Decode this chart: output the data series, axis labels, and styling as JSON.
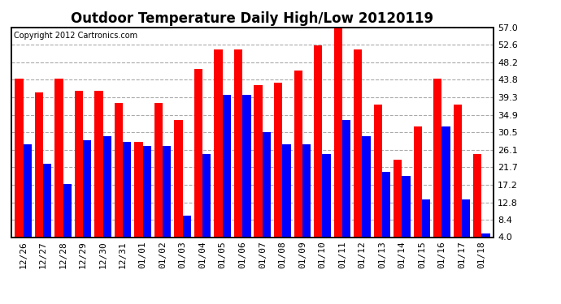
{
  "title": "Outdoor Temperature Daily High/Low 20120119",
  "copyright": "Copyright 2012 Cartronics.com",
  "categories": [
    "12/26",
    "12/27",
    "12/28",
    "12/29",
    "12/30",
    "12/31",
    "01/01",
    "01/02",
    "01/03",
    "01/04",
    "01/05",
    "01/06",
    "01/07",
    "01/08",
    "01/09",
    "01/10",
    "01/11",
    "01/12",
    "01/13",
    "01/14",
    "01/15",
    "01/16",
    "01/17",
    "01/18"
  ],
  "highs": [
    44.0,
    40.5,
    44.0,
    41.0,
    41.0,
    38.0,
    28.0,
    38.0,
    33.5,
    46.5,
    51.5,
    51.5,
    42.5,
    43.0,
    46.0,
    52.5,
    57.0,
    51.5,
    37.5,
    23.5,
    32.0,
    44.0,
    37.5,
    25.0
  ],
  "lows": [
    27.5,
    22.5,
    17.5,
    28.5,
    29.5,
    28.0,
    27.0,
    27.0,
    9.5,
    25.0,
    40.0,
    40.0,
    30.5,
    27.5,
    27.5,
    25.0,
    33.5,
    29.5,
    20.5,
    19.5,
    13.5,
    32.0,
    13.5,
    5.0
  ],
  "high_color": "#FF0000",
  "low_color": "#0000FF",
  "bg_color": "#FFFFFF",
  "grid_color": "#AAAAAA",
  "yticks": [
    4.0,
    8.4,
    12.8,
    17.2,
    21.7,
    26.1,
    30.5,
    34.9,
    39.3,
    43.8,
    48.2,
    52.6,
    57.0
  ],
  "ymin": 4.0,
  "ymax": 57.0,
  "title_fontsize": 12,
  "tick_fontsize": 8,
  "copyright_fontsize": 7
}
